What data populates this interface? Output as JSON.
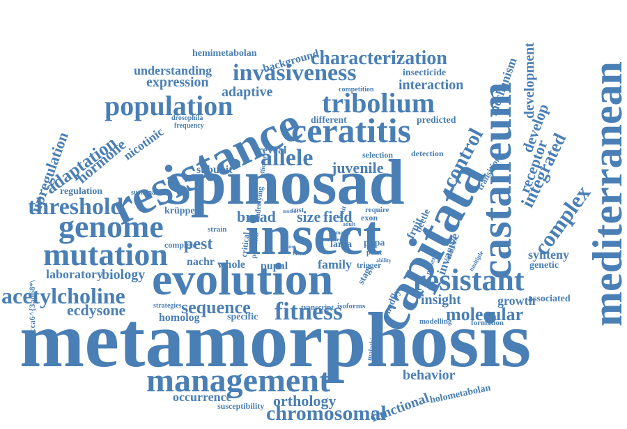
{
  "palette": {
    "word_color": "#4a7fb5",
    "background": "#ffffff"
  },
  "words": [
    "metamorphosis",
    "spinosad",
    "resistance",
    "insect",
    "evolution",
    "capitata",
    "castaneum",
    "mediterranean",
    "ceratitis",
    "tribolium",
    "population",
    "genome",
    "mutation",
    "management",
    "threshold",
    "acetylcholine",
    "resistant",
    "invasiveness",
    "characterization",
    "fitness",
    "allele",
    "control",
    "complex",
    "adaptation",
    "upregulation",
    "hormone",
    "sequence",
    "chromosomal",
    "behavior",
    "orthology",
    "occurrence",
    "functional",
    "molecular",
    "insight",
    "integrated",
    "receptor",
    "develop",
    "development",
    "mechanism",
    "interaction",
    "expression",
    "understanding",
    "adaptive",
    "background",
    "hemimetabolan",
    "holometabolan",
    "ecdysone",
    "laboratory",
    "biology",
    "homolog",
    "specific",
    "pest",
    "nachr",
    "whole",
    "pupal",
    "family",
    "broad",
    "size",
    "field",
    "juvenile",
    "reveal",
    "subunit",
    "regulation",
    "nicotinic",
    "drosophila",
    "frequency",
    "different",
    "predicted",
    "insecticide",
    "competition",
    "selection",
    "detection",
    "transition",
    "invasive",
    "synteny",
    "genetic",
    "growth",
    "associated",
    "medfly",
    "stage",
    "trigger",
    "strain",
    "critical",
    "complete",
    "larva",
    "pupa",
    "exon",
    "require",
    "adult",
    "cost",
    "mutant",
    "krüppel",
    "sustainable",
    "underlying",
    "efficacy",
    "beetle",
    "fruit",
    "present",
    "analysis",
    "multiple",
    "transcript",
    "isoforms",
    "modelling",
    "formation",
    "malathion",
    "strategies",
    "susceptibility",
    "potential",
    "point",
    "trait",
    "model",
    "screen",
    "ability",
    "factor",
    "loss",
    "cca6^{3aq68*\\"
  ]
}
